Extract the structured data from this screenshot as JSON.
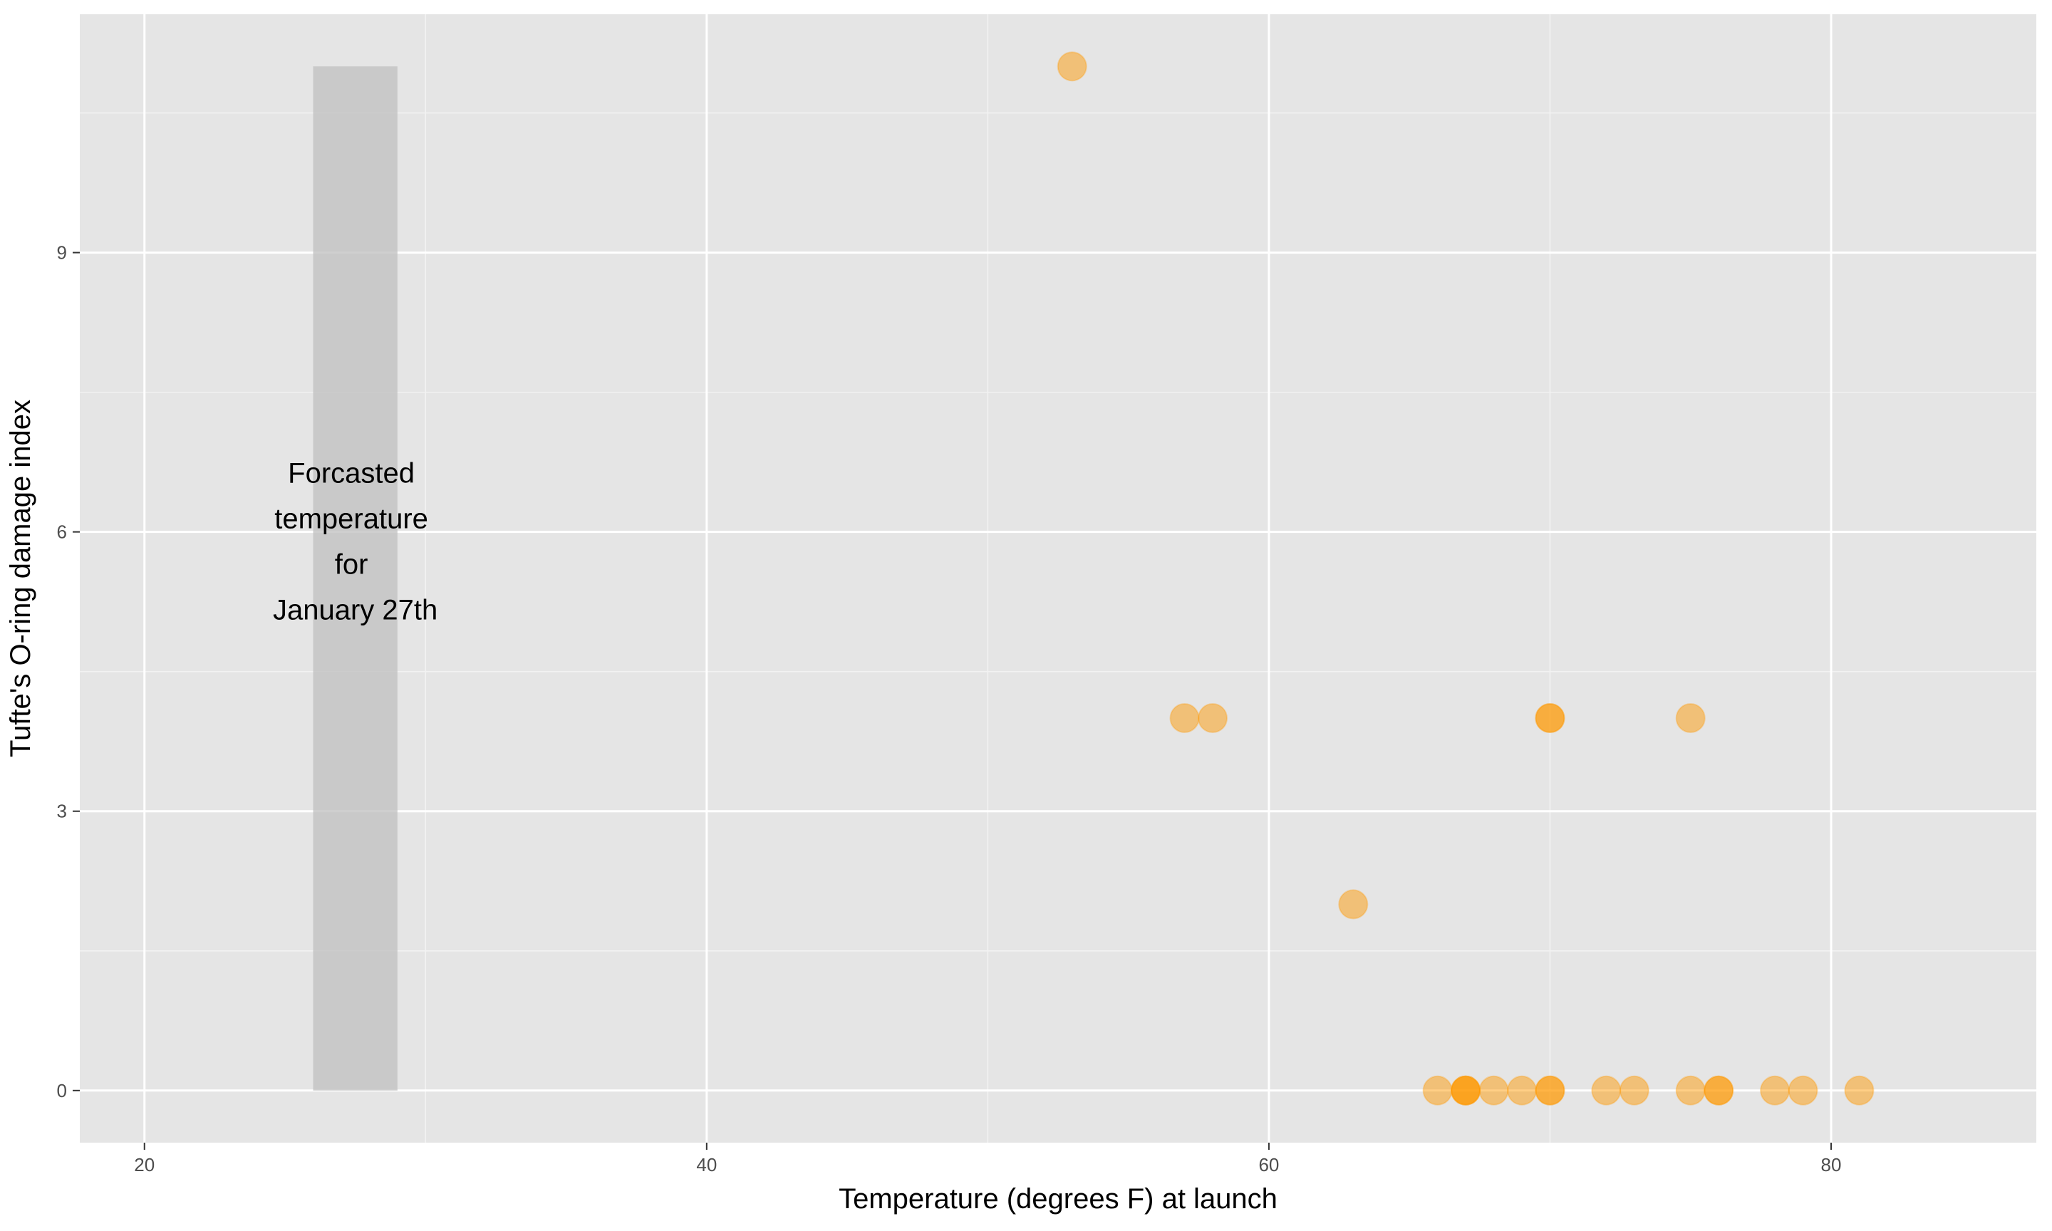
{
  "chart_data": {
    "type": "scatter",
    "xlabel": "Temperature (degrees F) at launch",
    "ylabel": "Tufte's O-ring damage index",
    "xlim": [
      17.7,
      87.3
    ],
    "ylim": [
      -0.56,
      11.56
    ],
    "x_ticks": [
      20,
      40,
      60,
      80
    ],
    "y_ticks": [
      0,
      3,
      6,
      9
    ],
    "grid": true,
    "point_color": "#ff9900",
    "panel_color": "#e5e5e5",
    "band_color": "#bfbfbf",
    "points": [
      {
        "x": 53,
        "y": 11
      },
      {
        "x": 57,
        "y": 4
      },
      {
        "x": 58,
        "y": 4
      },
      {
        "x": 63,
        "y": 2
      },
      {
        "x": 66,
        "y": 0
      },
      {
        "x": 67,
        "y": 0
      },
      {
        "x": 67,
        "y": 0
      },
      {
        "x": 67,
        "y": 0
      },
      {
        "x": 68,
        "y": 0
      },
      {
        "x": 69,
        "y": 0
      },
      {
        "x": 70,
        "y": 0
      },
      {
        "x": 70,
        "y": 0
      },
      {
        "x": 70,
        "y": 4
      },
      {
        "x": 70,
        "y": 4
      },
      {
        "x": 72,
        "y": 0
      },
      {
        "x": 73,
        "y": 0
      },
      {
        "x": 75,
        "y": 0
      },
      {
        "x": 75,
        "y": 4
      },
      {
        "x": 76,
        "y": 0
      },
      {
        "x": 76,
        "y": 0
      },
      {
        "x": 78,
        "y": 0
      },
      {
        "x": 79,
        "y": 0
      },
      {
        "x": 81,
        "y": 0
      }
    ],
    "band": {
      "x_min": 26,
      "x_max": 29,
      "y_min": 0,
      "y_max": 11
    },
    "annotation": {
      "lines": [
        "Forcasted",
        "temperature",
        "for",
        "January 27th"
      ],
      "x": 27.5,
      "y": 5.9
    }
  }
}
